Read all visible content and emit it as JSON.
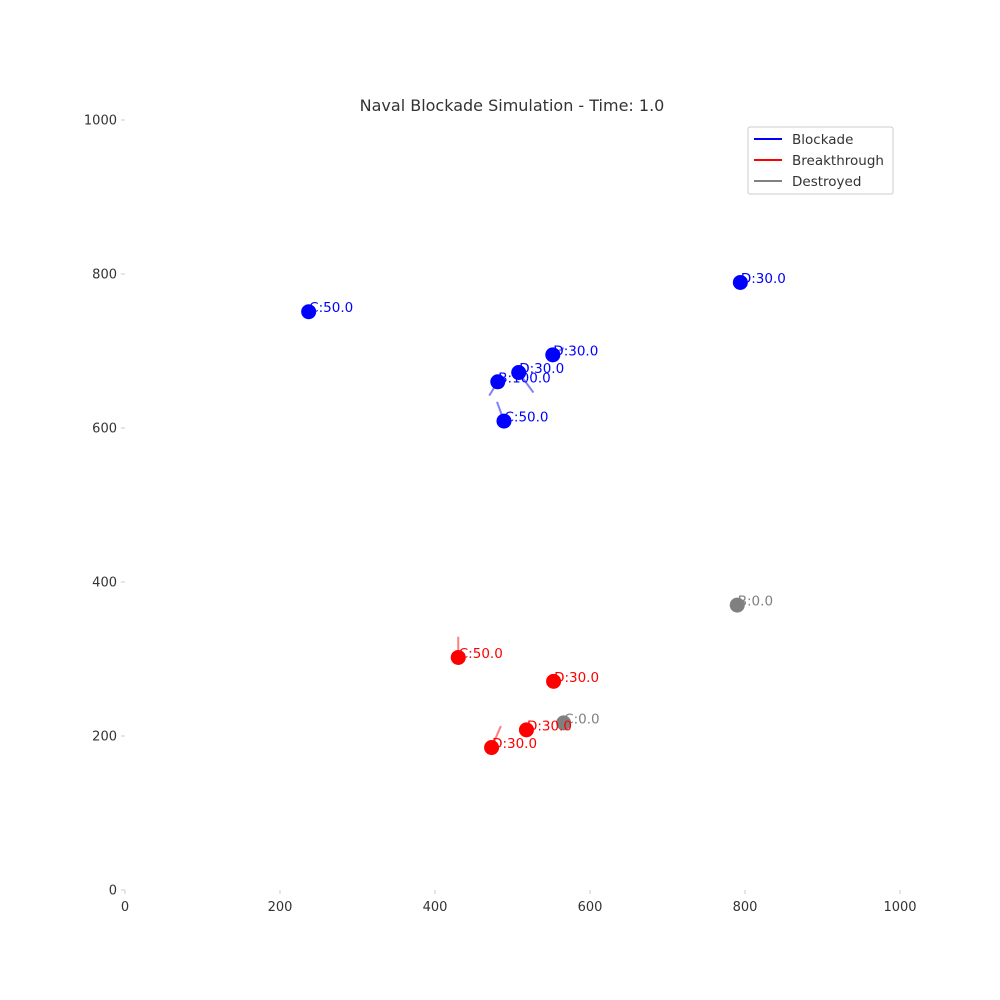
{
  "chart_data": {
    "type": "scatter",
    "title": "Naval Blockade Simulation - Time: 1.0",
    "xlim": [
      0,
      1000
    ],
    "ylim": [
      0,
      1000
    ],
    "x_ticks": [
      0,
      200,
      400,
      600,
      800,
      1000
    ],
    "y_ticks": [
      0,
      200,
      400,
      600,
      800,
      1000
    ],
    "grid": false,
    "legend_position": "top-right",
    "colors": {
      "Blockade": "#0000ff",
      "Breakthrough": "#ff0000",
      "Destroyed": "#808080"
    },
    "legend": [
      "Blockade",
      "Breakthrough",
      "Destroyed"
    ],
    "ships": [
      {
        "group": "Blockade",
        "label": "C:50.0",
        "x": 237,
        "y": 751,
        "hx": 0,
        "hy": 0
      },
      {
        "group": "Blockade",
        "label": "D:30.0",
        "x": 794,
        "y": 789,
        "hx": 0,
        "hy": 0
      },
      {
        "group": "Blockade",
        "label": "D:30.0",
        "x": 552,
        "y": 695,
        "hx": 14,
        "hy": 9
      },
      {
        "group": "Blockade",
        "label": "D:30.0",
        "x": 508,
        "y": 672,
        "hx": 19,
        "hy": -26
      },
      {
        "group": "Blockade",
        "label": "B:100.0",
        "x": 481,
        "y": 660,
        "hx": -11,
        "hy": -18
      },
      {
        "group": "Blockade",
        "label": "C:50.0",
        "x": 489,
        "y": 609,
        "hx": -9,
        "hy": 25
      },
      {
        "group": "Destroyed",
        "label": "B:0.0",
        "x": 790,
        "y": 370,
        "hx": 0,
        "hy": 0
      },
      {
        "group": "Breakthrough",
        "label": "C:50.0",
        "x": 430,
        "y": 302,
        "hx": 0,
        "hy": 27
      },
      {
        "group": "Breakthrough",
        "label": "D:30.0",
        "x": 553,
        "y": 271,
        "hx": 0,
        "hy": 0
      },
      {
        "group": "Destroyed",
        "label": "C:0.0",
        "x": 566,
        "y": 217,
        "hx": 0,
        "hy": 0
      },
      {
        "group": "Breakthrough",
        "label": "D:30.0",
        "x": 518,
        "y": 208,
        "hx": 0,
        "hy": 0
      },
      {
        "group": "Breakthrough",
        "label": "D:30.0",
        "x": 473,
        "y": 185,
        "hx": 12,
        "hy": 28
      }
    ]
  }
}
